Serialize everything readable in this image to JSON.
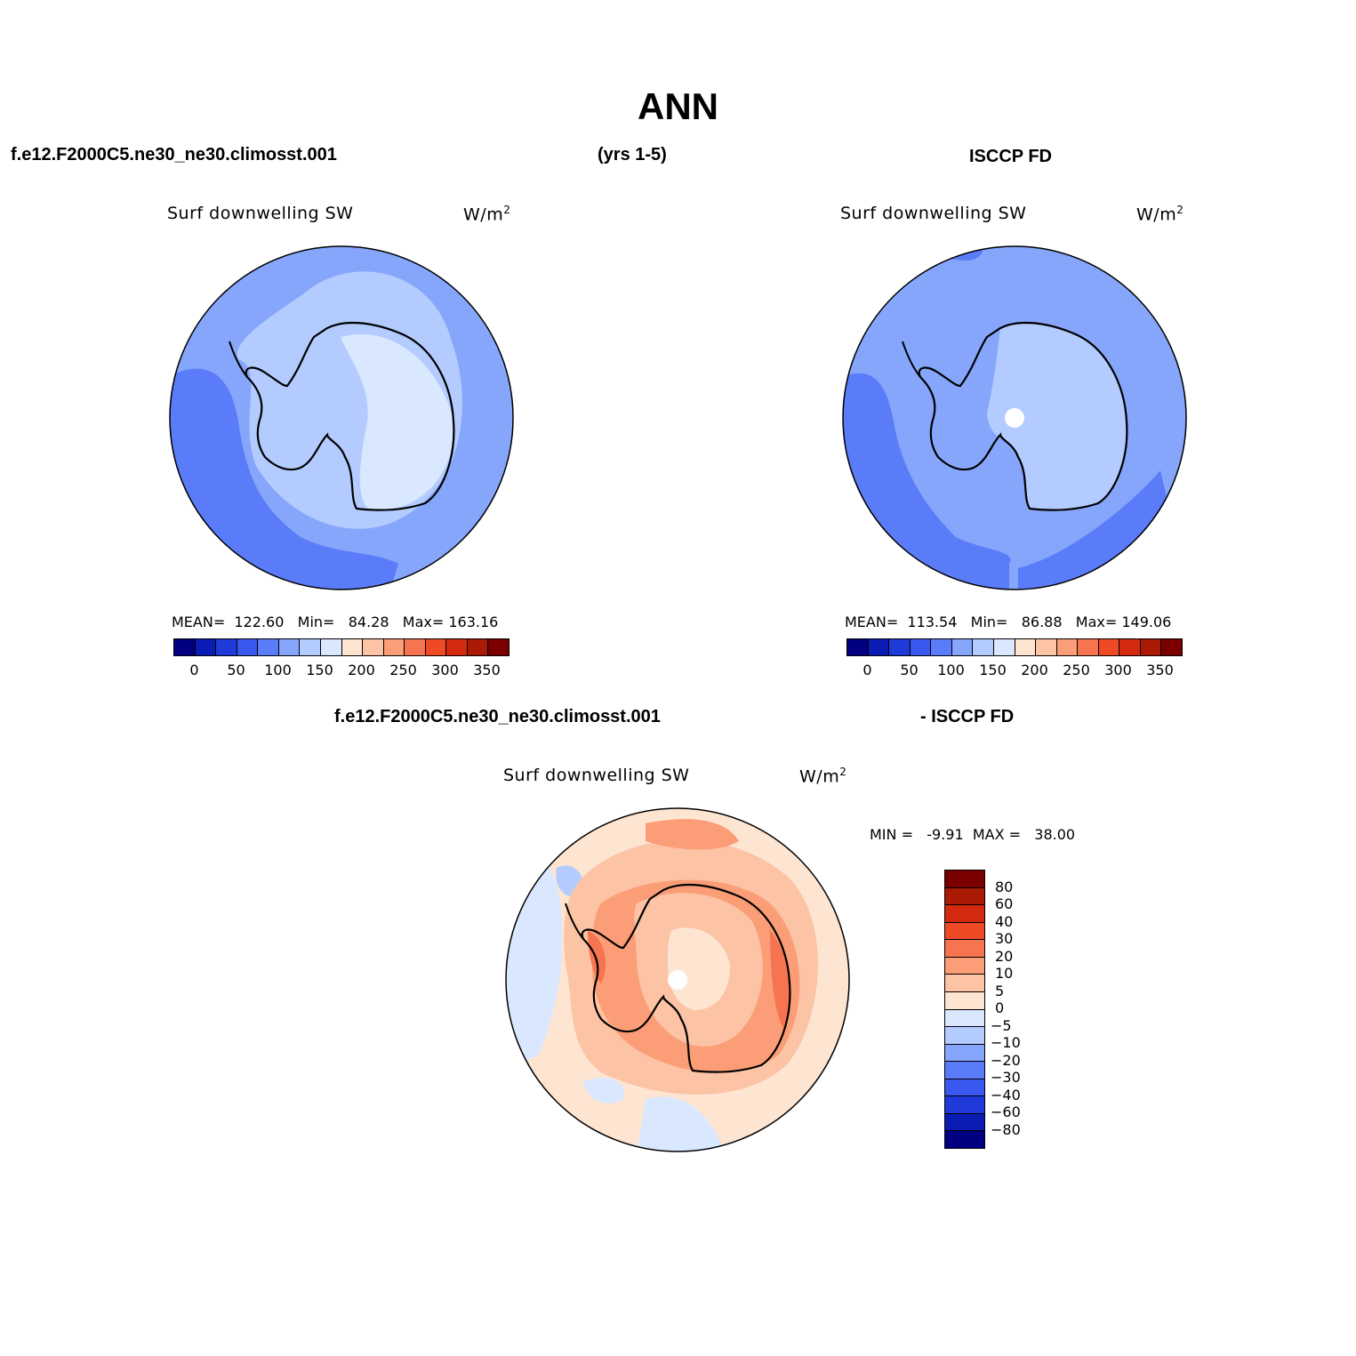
{
  "title": "ANN",
  "header": {
    "case_name": "f.e12.F2000C5.ne30_ne30.climosst.001",
    "years": "(yrs 1-5)",
    "obs_name": "ISCCP FD"
  },
  "diff_header": {
    "case_name": "f.e12.F2000C5.ne30_ne30.climosst.001",
    "obs_name": "- ISCCP FD"
  },
  "chart_data": [
    {
      "type": "heatmap",
      "projection": "south polar stereographic",
      "panel": "model",
      "variable": "Surf downwelling SW",
      "units": "W/m",
      "units_superscript": "2",
      "mean_label": "MEAN=",
      "mean": "122.60",
      "min_label": "Min=",
      "min": "84.28",
      "max_label": "Max=",
      "max": "163.16",
      "levels": [
        "0",
        "50",
        "100",
        "150",
        "200",
        "250",
        "300",
        "350"
      ],
      "colors": [
        "#000080",
        "#0a1cb4",
        "#1f3ad8",
        "#3858f0",
        "#5a7cf8",
        "#86a6fc",
        "#b3cbfe",
        "#d9e8ff",
        "#fde5d2",
        "#fcc3a4",
        "#fb9d76",
        "#f67550",
        "#ee4a25",
        "#d42a10",
        "#aa1a05",
        "#7a0000"
      ]
    },
    {
      "type": "heatmap",
      "projection": "south polar stereographic",
      "panel": "observations",
      "variable": "Surf downwelling SW",
      "units": "W/m",
      "units_superscript": "2",
      "mean_label": "MEAN=",
      "mean": "113.54",
      "min_label": "Min=",
      "min": "86.88",
      "max_label": "Max=",
      "max": "149.06",
      "levels": [
        "0",
        "50",
        "100",
        "150",
        "200",
        "250",
        "300",
        "350"
      ],
      "colors": [
        "#000080",
        "#0a1cb4",
        "#1f3ad8",
        "#3858f0",
        "#5a7cf8",
        "#86a6fc",
        "#b3cbfe",
        "#d9e8ff",
        "#fde5d2",
        "#fcc3a4",
        "#fb9d76",
        "#f67550",
        "#ee4a25",
        "#d42a10",
        "#aa1a05",
        "#7a0000"
      ]
    },
    {
      "type": "heatmap",
      "projection": "south polar stereographic",
      "panel": "difference",
      "variable": "Surf downwelling SW",
      "units": "W/m",
      "units_superscript": "2",
      "min_label": "MIN =",
      "min": "-9.91",
      "max_label": "MAX =",
      "max": "38.00",
      "levels": [
        "80",
        "60",
        "40",
        "30",
        "20",
        "10",
        "5",
        "0",
        "-5",
        "-10",
        "-20",
        "-30",
        "-40",
        "-60",
        "-80"
      ],
      "colors": [
        "#7a0000",
        "#aa1a05",
        "#d42a10",
        "#ee4a25",
        "#f67550",
        "#fb9d76",
        "#fcc3a4",
        "#fde5d2",
        "#d9e8ff",
        "#b3cbfe",
        "#86a6fc",
        "#5a7cf8",
        "#3858f0",
        "#1f3ad8",
        "#0a1cb4",
        "#000080"
      ]
    }
  ]
}
